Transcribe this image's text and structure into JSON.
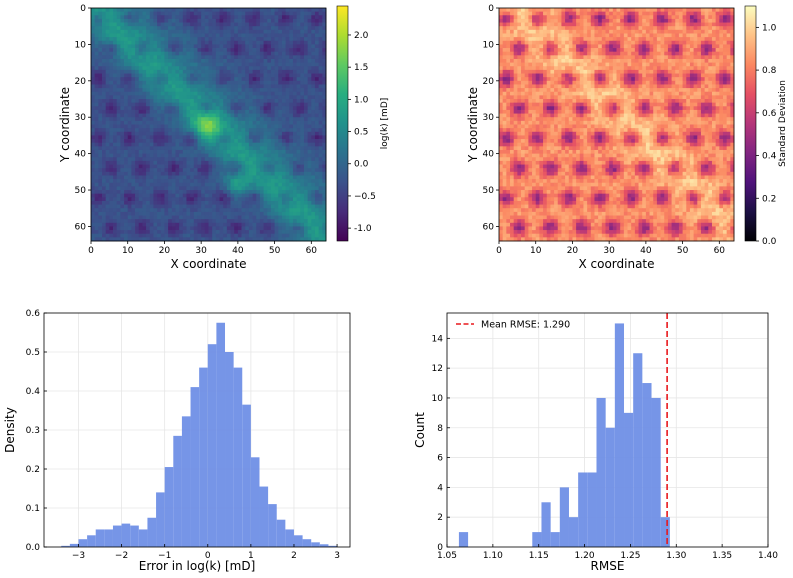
{
  "chart_data": [
    {
      "type": "heatmap",
      "id": "perm-map",
      "xlabel": "X coordinate",
      "ylabel": "Y coordinate",
      "xlim": [
        0,
        64
      ],
      "ylim": [
        64,
        0
      ],
      "xticks": [
        0,
        10,
        20,
        30,
        40,
        50,
        60
      ],
      "yticks": [
        0,
        10,
        20,
        30,
        40,
        50,
        60
      ],
      "grid_size": 64,
      "colormap": "viridis",
      "colorbar": {
        "label": "log(k) [mD]",
        "vmin": -1.2,
        "vmax": 2.45,
        "ticks": [
          "-1.0",
          "−0.5",
          "0.0",
          "0.5",
          "1.0",
          "1.5",
          "2.0"
        ],
        "tick_values": [
          -1.0,
          -0.5,
          0.0,
          0.5,
          1.0,
          1.5,
          2.0
        ]
      }
    },
    {
      "type": "heatmap",
      "id": "std-map",
      "xlabel": "X coordinate",
      "ylabel": "Y coordinate",
      "xlim": [
        0,
        64
      ],
      "ylim": [
        64,
        0
      ],
      "xticks": [
        0,
        10,
        20,
        30,
        40,
        50,
        60
      ],
      "yticks": [
        0,
        10,
        20,
        30,
        40,
        50,
        60
      ],
      "grid_size": 64,
      "colormap": "magma",
      "colorbar": {
        "label": "Standard Deviation",
        "vmin": 0.0,
        "vmax": 1.1,
        "ticks": [
          "0.0",
          "0.2",
          "0.4",
          "0.6",
          "0.8",
          "1.0"
        ],
        "tick_values": [
          0.0,
          0.2,
          0.4,
          0.6,
          0.8,
          1.0
        ]
      }
    },
    {
      "type": "bar",
      "id": "error-hist",
      "xlabel": "Error in log(k) [mD]",
      "ylabel": "Density",
      "xlim": [
        -3.8,
        3.3
      ],
      "ylim": [
        0,
        0.6
      ],
      "xticks": [
        -3,
        -2,
        -1,
        0,
        1,
        2,
        3
      ],
      "xtick_labels": [
        "−3",
        "−2",
        "−1",
        "0",
        "1",
        "2",
        "3"
      ],
      "yticks": [
        0.0,
        0.1,
        0.2,
        0.3,
        0.4,
        0.5,
        0.6
      ],
      "ytick_labels": [
        "0.0",
        "0.1",
        "0.2",
        "0.3",
        "0.4",
        "0.5",
        "0.6"
      ],
      "bin_width": 0.2,
      "bin_start": -3.4,
      "values": [
        0.003,
        0.008,
        0.02,
        0.03,
        0.045,
        0.045,
        0.055,
        0.06,
        0.055,
        0.045,
        0.075,
        0.14,
        0.205,
        0.285,
        0.335,
        0.41,
        0.46,
        0.52,
        0.575,
        0.5,
        0.46,
        0.365,
        0.23,
        0.155,
        0.11,
        0.07,
        0.045,
        0.03,
        0.02,
        0.012,
        0.007,
        0.003
      ],
      "color": "#6f8fe6"
    },
    {
      "type": "bar",
      "id": "rmse-hist",
      "xlabel": "RMSE",
      "ylabel": "Count",
      "xlim": [
        1.05,
        1.4
      ],
      "ylim": [
        0,
        15.7
      ],
      "xticks": [
        1.05,
        1.1,
        1.15,
        1.2,
        1.25,
        1.3,
        1.35,
        1.4
      ],
      "xtick_labels": [
        "1.05",
        "1.10",
        "1.15",
        "1.20",
        "1.25",
        "1.30",
        "1.35",
        "1.40"
      ],
      "yticks": [
        0,
        2,
        4,
        6,
        8,
        10,
        12,
        14
      ],
      "ytick_labels": [
        "0",
        "2",
        "4",
        "6",
        "8",
        "10",
        "12",
        "14"
      ],
      "bin_width": 0.01,
      "bin_start": 1.063,
      "values": [
        1,
        0,
        0,
        0,
        0,
        0,
        0,
        0,
        1,
        3,
        1,
        4,
        2,
        5,
        5,
        10,
        8,
        15,
        9,
        13,
        11,
        10,
        2
      ],
      "color": "#6f8fe6",
      "mean_line": {
        "value": 1.29,
        "color": "#e8191d",
        "label": "Mean RMSE: 1.290"
      },
      "legend_position": "top-left"
    }
  ]
}
